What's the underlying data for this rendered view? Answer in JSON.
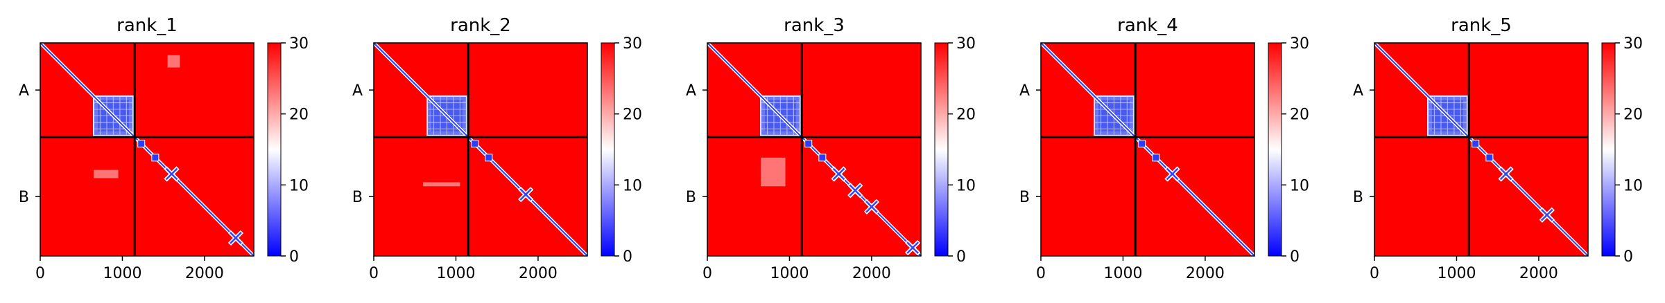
{
  "chart_data": [
    {
      "type": "heatmap",
      "title": "rank_1",
      "x_ticks": [
        0,
        1000,
        2000
      ],
      "x_tick_labels": [
        "0",
        "1000",
        "2000"
      ],
      "xlim": [
        0,
        2600
      ],
      "segments": [
        {
          "label": "A",
          "start": 0,
          "end": 1150
        },
        {
          "label": "B",
          "start": 1150,
          "end": 2600
        }
      ],
      "colorbar": {
        "min": 0,
        "max": 30,
        "ticks": [
          0,
          10,
          20,
          30
        ],
        "tick_labels": [
          "0",
          "10",
          "20",
          "30"
        ],
        "colors": [
          "#0000ff",
          "#ffffff",
          "#ff0000"
        ]
      },
      "blue_blocks": [
        [
          650,
          1130,
          650,
          1130
        ]
      ],
      "blue_dots": [
        [
          1230,
          1230
        ],
        [
          1400,
          1400
        ]
      ],
      "x_marks": [
        [
          1600,
          1600
        ],
        [
          2380,
          2380
        ]
      ],
      "white_patches": [
        [
          1550,
          1700,
          150,
          300
        ],
        [
          650,
          950,
          1550,
          1650
        ]
      ]
    },
    {
      "type": "heatmap",
      "title": "rank_2",
      "x_ticks": [
        0,
        1000,
        2000
      ],
      "x_tick_labels": [
        "0",
        "1000",
        "2000"
      ],
      "xlim": [
        0,
        2600
      ],
      "segments": [
        {
          "label": "A",
          "start": 0,
          "end": 1150
        },
        {
          "label": "B",
          "start": 1150,
          "end": 2600
        }
      ],
      "colorbar": {
        "min": 0,
        "max": 30,
        "ticks": [
          0,
          10,
          20,
          30
        ],
        "tick_labels": [
          "0",
          "10",
          "20",
          "30"
        ],
        "colors": [
          "#0000ff",
          "#ffffff",
          "#ff0000"
        ]
      },
      "blue_blocks": [
        [
          650,
          1130,
          650,
          1130
        ]
      ],
      "blue_dots": [
        [
          1230,
          1230
        ],
        [
          1400,
          1400
        ]
      ],
      "x_marks": [
        [
          1850,
          1850
        ]
      ],
      "white_patches": [
        [
          600,
          1050,
          1700,
          1750
        ]
      ]
    },
    {
      "type": "heatmap",
      "title": "rank_3",
      "x_ticks": [
        0,
        1000,
        2000
      ],
      "x_tick_labels": [
        "0",
        "1000",
        "2000"
      ],
      "xlim": [
        0,
        2600
      ],
      "segments": [
        {
          "label": "A",
          "start": 0,
          "end": 1150
        },
        {
          "label": "B",
          "start": 1150,
          "end": 2600
        }
      ],
      "colorbar": {
        "min": 0,
        "max": 30,
        "ticks": [
          0,
          10,
          20,
          30
        ],
        "tick_labels": [
          "0",
          "10",
          "20",
          "30"
        ],
        "colors": [
          "#0000ff",
          "#ffffff",
          "#ff0000"
        ]
      },
      "blue_blocks": [
        [
          650,
          1130,
          650,
          1130
        ]
      ],
      "blue_dots": [
        [
          1230,
          1230
        ],
        [
          1400,
          1400
        ]
      ],
      "x_marks": [
        [
          1600,
          1600
        ],
        [
          1800,
          1800
        ],
        [
          2000,
          2000
        ],
        [
          2500,
          2500
        ]
      ],
      "white_patches": [
        [
          650,
          950,
          1400,
          1750
        ]
      ]
    },
    {
      "type": "heatmap",
      "title": "rank_4",
      "x_ticks": [
        0,
        1000,
        2000
      ],
      "x_tick_labels": [
        "0",
        "1000",
        "2000"
      ],
      "xlim": [
        0,
        2600
      ],
      "segments": [
        {
          "label": "A",
          "start": 0,
          "end": 1150
        },
        {
          "label": "B",
          "start": 1150,
          "end": 2600
        }
      ],
      "colorbar": {
        "min": 0,
        "max": 30,
        "ticks": [
          0,
          10,
          20,
          30
        ],
        "tick_labels": [
          "0",
          "10",
          "20",
          "30"
        ],
        "colors": [
          "#0000ff",
          "#ffffff",
          "#ff0000"
        ]
      },
      "blue_blocks": [
        [
          650,
          1130,
          650,
          1130
        ]
      ],
      "blue_dots": [
        [
          1230,
          1230
        ],
        [
          1400,
          1400
        ]
      ],
      "x_marks": [
        [
          1600,
          1600
        ]
      ],
      "white_patches": []
    },
    {
      "type": "heatmap",
      "title": "rank_5",
      "x_ticks": [
        0,
        1000,
        2000
      ],
      "x_tick_labels": [
        "0",
        "1000",
        "2000"
      ],
      "xlim": [
        0,
        2600
      ],
      "segments": [
        {
          "label": "A",
          "start": 0,
          "end": 1150
        },
        {
          "label": "B",
          "start": 1150,
          "end": 2600
        }
      ],
      "colorbar": {
        "min": 0,
        "max": 30,
        "ticks": [
          0,
          10,
          20,
          30
        ],
        "tick_labels": [
          "0",
          "10",
          "20",
          "30"
        ],
        "colors": [
          "#0000ff",
          "#ffffff",
          "#ff0000"
        ]
      },
      "blue_blocks": [
        [
          650,
          1130,
          650,
          1130
        ]
      ],
      "blue_dots": [
        [
          1230,
          1230
        ],
        [
          1400,
          1400
        ]
      ],
      "x_marks": [
        [
          1600,
          1600
        ],
        [
          2100,
          2100
        ]
      ],
      "white_patches": []
    }
  ]
}
